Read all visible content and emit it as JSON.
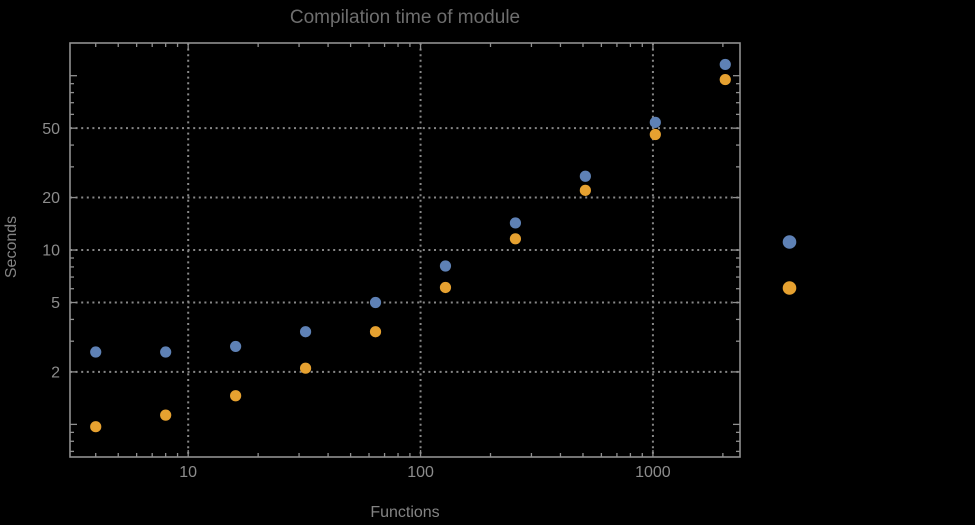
{
  "background": "#000000",
  "chart_data": {
    "type": "scatter",
    "title": "Compilation time of module",
    "xlabel": "Functions",
    "ylabel": "Seconds",
    "x_scale": "log",
    "y_scale": "log",
    "xlim": [
      3.1,
      2370
    ],
    "ylim": [
      0.65,
      154
    ],
    "x_major_ticks": [
      10,
      100,
      1000
    ],
    "y_major_ticks": [
      2,
      5,
      10,
      20,
      50
    ],
    "grid": "dotted",
    "frame": true,
    "legend_position": "right-outside",
    "x": [
      4,
      8,
      16,
      32,
      64,
      128,
      256,
      512,
      1024,
      2048
    ],
    "series": [
      {
        "name": "series-blue",
        "marker": "circle",
        "color": "#5e81b5",
        "values": [
          2.6,
          2.6,
          2.8,
          3.4,
          5.0,
          8.1,
          14.3,
          26.5,
          54,
          116
        ]
      },
      {
        "name": "series-orange",
        "marker": "circle",
        "color": "#e6a130",
        "values": [
          0.97,
          1.13,
          1.46,
          2.1,
          3.4,
          6.1,
          11.6,
          22,
          46,
          95
        ]
      }
    ],
    "colors": {
      "frame": "#909090",
      "grid": "#878787",
      "tick_text": "#8c8c8c",
      "title_text": "#6e6e6e",
      "axis_label_text": "#848484",
      "background": "#000000"
    }
  }
}
